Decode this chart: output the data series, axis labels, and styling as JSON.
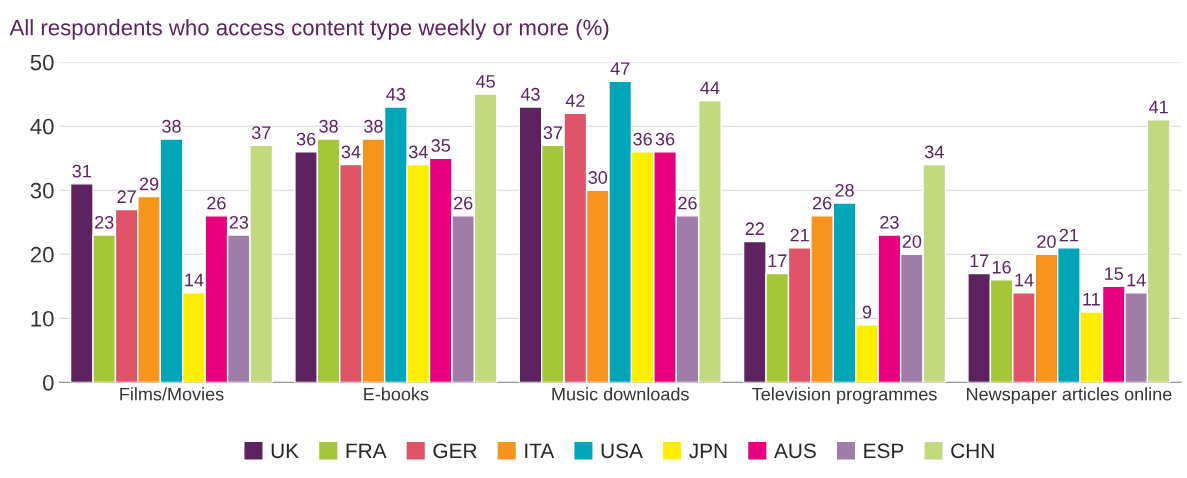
{
  "chart_data": {
    "type": "bar",
    "title": "All respondents who access content type weekly or more (%)",
    "categories": [
      "Films/Movies",
      "E-books",
      "Music downloads",
      "Television programmes",
      "Newspaper articles online"
    ],
    "series": [
      {
        "name": "UK",
        "color": "#5c2360",
        "values": [
          31,
          36,
          43,
          22,
          17
        ]
      },
      {
        "name": "FRA",
        "color": "#a6c63a",
        "values": [
          23,
          38,
          37,
          17,
          16
        ]
      },
      {
        "name": "GER",
        "color": "#e0546a",
        "values": [
          27,
          34,
          42,
          21,
          14
        ]
      },
      {
        "name": "ITA",
        "color": "#f7941d",
        "values": [
          29,
          38,
          30,
          26,
          20
        ]
      },
      {
        "name": "USA",
        "color": "#00a5b8",
        "values": [
          38,
          43,
          47,
          28,
          21
        ]
      },
      {
        "name": "JPN",
        "color": "#ffee00",
        "values": [
          14,
          34,
          36,
          9,
          11
        ]
      },
      {
        "name": "AUS",
        "color": "#e6007e",
        "values": [
          26,
          35,
          36,
          23,
          15
        ]
      },
      {
        "name": "ESP",
        "color": "#a07ca8",
        "values": [
          23,
          26,
          26,
          20,
          14
        ]
      },
      {
        "name": "CHN",
        "color": "#c3d97d",
        "values": [
          37,
          45,
          44,
          34,
          41
        ]
      }
    ],
    "ylim": [
      0,
      50
    ],
    "yticks": [
      0,
      10,
      20,
      30,
      40,
      50
    ],
    "grid": "y",
    "legend": "bottom",
    "data_labels": true
  }
}
